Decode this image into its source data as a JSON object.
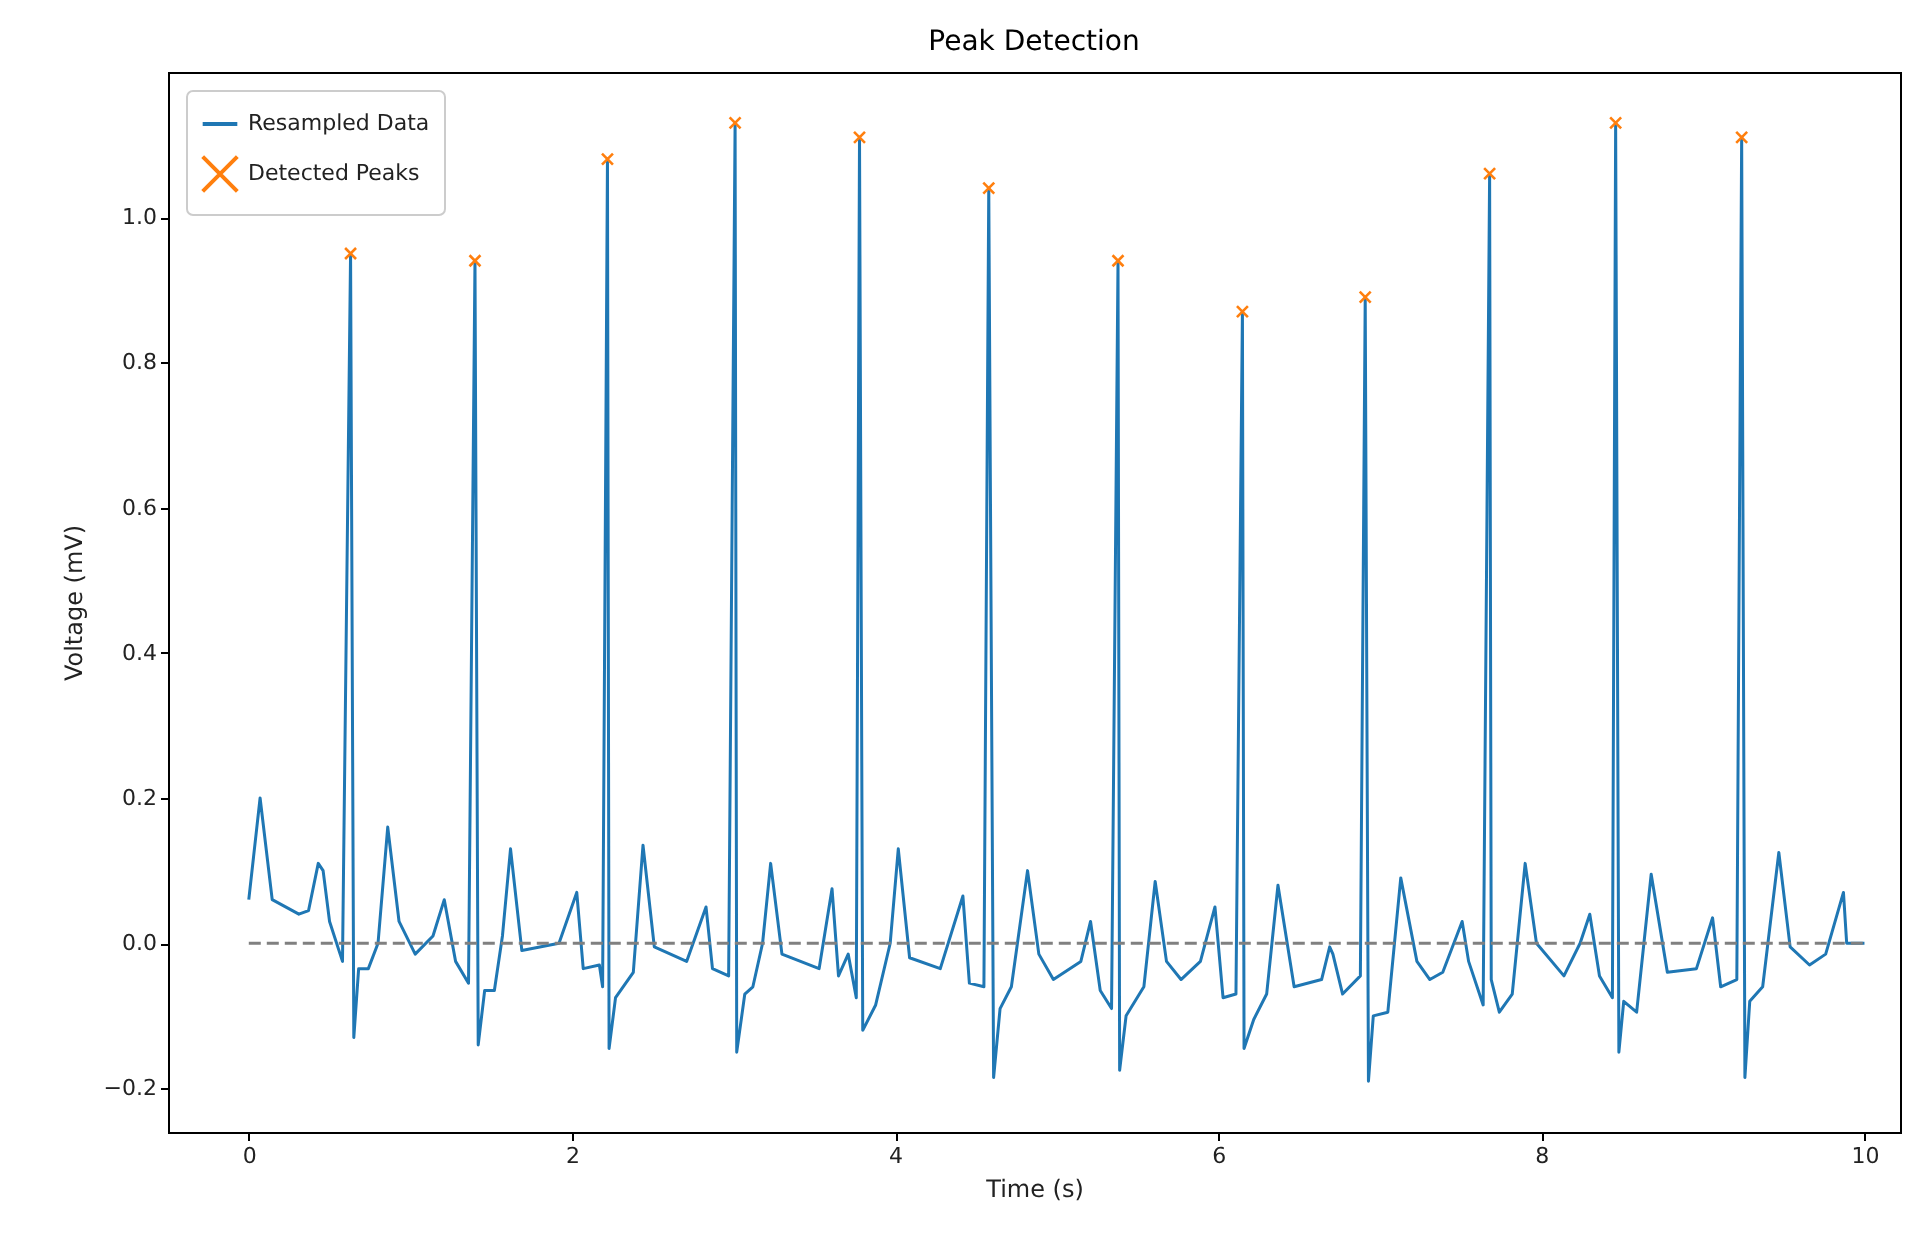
{
  "chart_data": {
    "type": "line",
    "title": "Peak Detection",
    "xlabel": "Time (s)",
    "ylabel": "Voltage (mV)",
    "xlim": [
      -0.5,
      10.22
    ],
    "ylim": [
      -0.26,
      1.2
    ],
    "xticks": [
      0,
      2,
      4,
      6,
      8,
      10
    ],
    "yticks": [
      {
        "value": -0.2,
        "label": "−0.2"
      },
      {
        "value": 0,
        "label": "0.0"
      },
      {
        "value": 0.2,
        "label": "0.2"
      },
      {
        "value": 0.4,
        "label": "0.4"
      },
      {
        "value": 0.6,
        "label": "0.6"
      },
      {
        "value": 0.8,
        "label": "0.8"
      },
      {
        "value": 1.0,
        "label": "1.0"
      }
    ],
    "legend": "top left",
    "grid": false,
    "ref_lines": [
      {
        "axis": "y",
        "value": 0,
        "color": "#808080",
        "line_style": "dashed"
      }
    ],
    "series": [
      {
        "name": "Resampled Data",
        "color": "#1f77b4",
        "marker": "none",
        "line_style": "solid",
        "x": [
          0,
          0.07,
          0.145,
          0.31,
          0.37,
          0.43,
          0.46,
          0.5,
          0.58,
          0.63,
          0.65,
          0.68,
          0.74,
          0.8,
          0.86,
          0.93,
          1.03,
          1.14,
          1.21,
          1.28,
          1.36,
          1.4,
          1.42,
          1.46,
          1.52,
          1.57,
          1.62,
          1.69,
          1.92,
          2.03,
          2.07,
          2.17,
          2.19,
          2.22,
          2.23,
          2.27,
          2.38,
          2.44,
          2.51,
          2.71,
          2.83,
          2.87,
          2.97,
          3.01,
          3.02,
          3.07,
          3.12,
          3.18,
          3.23,
          3.3,
          3.53,
          3.61,
          3.65,
          3.71,
          3.76,
          3.78,
          3.8,
          3.88,
          3.97,
          4.02,
          4.09,
          4.28,
          4.42,
          4.46,
          4.55,
          4.58,
          4.61,
          4.65,
          4.72,
          4.82,
          4.89,
          4.98,
          5.15,
          5.21,
          5.27,
          5.34,
          5.38,
          5.39,
          5.43,
          5.54,
          5.61,
          5.68,
          5.77,
          5.89,
          5.98,
          6.03,
          6.11,
          6.15,
          6.16,
          6.22,
          6.3,
          6.37,
          6.47,
          6.64,
          6.69,
          6.71,
          6.77,
          6.88,
          6.91,
          6.93,
          6.96,
          7.05,
          7.13,
          7.23,
          7.31,
          7.39,
          7.51,
          7.55,
          7.64,
          7.68,
          7.69,
          7.74,
          7.82,
          7.9,
          7.97,
          8.14,
          8.24,
          8.3,
          8.36,
          8.44,
          8.46,
          8.48,
          8.51,
          8.59,
          8.68,
          8.78,
          8.96,
          9.06,
          9.11,
          9.21,
          9.24,
          9.26,
          9.29,
          9.37,
          9.47,
          9.54,
          9.66,
          9.76,
          9.87,
          9.89,
          10.0
        ],
        "values": [
          0.06,
          0.2,
          0.06,
          0.04,
          0.045,
          0.11,
          0.1,
          0.03,
          -0.025,
          0.95,
          -0.13,
          -0.035,
          -0.035,
          0.0,
          0.16,
          0.03,
          -0.015,
          0.01,
          0.06,
          -0.025,
          -0.055,
          0.94,
          -0.14,
          -0.065,
          -0.065,
          0.01,
          0.13,
          -0.01,
          0.0,
          0.07,
          -0.035,
          -0.03,
          -0.06,
          1.08,
          -0.145,
          -0.075,
          -0.04,
          0.135,
          -0.005,
          -0.025,
          0.05,
          -0.035,
          -0.045,
          1.13,
          -0.15,
          -0.07,
          -0.06,
          0.0,
          0.11,
          -0.015,
          -0.035,
          0.075,
          -0.045,
          -0.015,
          -0.075,
          1.11,
          -0.12,
          -0.085,
          0.0,
          0.13,
          -0.02,
          -0.035,
          0.065,
          -0.055,
          -0.06,
          1.04,
          -0.185,
          -0.09,
          -0.06,
          0.1,
          -0.015,
          -0.05,
          -0.025,
          0.03,
          -0.065,
          -0.09,
          0.94,
          -0.175,
          -0.1,
          -0.06,
          0.085,
          -0.025,
          -0.05,
          -0.025,
          0.05,
          -0.075,
          -0.07,
          0.87,
          -0.145,
          -0.105,
          -0.07,
          0.08,
          -0.06,
          -0.05,
          -0.005,
          -0.015,
          -0.07,
          -0.045,
          0.89,
          -0.19,
          -0.1,
          -0.095,
          0.09,
          -0.025,
          -0.05,
          -0.04,
          0.03,
          -0.025,
          -0.085,
          1.06,
          -0.05,
          -0.095,
          -0.07,
          0.11,
          0.0,
          -0.045,
          0.0,
          0.04,
          -0.045,
          -0.075,
          1.13,
          -0.15,
          -0.08,
          -0.095,
          0.095,
          -0.04,
          -0.035,
          0.035,
          -0.06,
          -0.05,
          1.11,
          -0.185,
          -0.08,
          -0.06,
          0.125,
          -0.005,
          -0.03,
          -0.015,
          0.07,
          0.0,
          0.0
        ]
      },
      {
        "name": "Detected Peaks",
        "type": "scatter",
        "color": "#ff7f0e",
        "marker": "cross",
        "x": [
          0.63,
          1.4,
          2.22,
          3.01,
          3.78,
          4.58,
          5.38,
          6.15,
          6.91,
          7.68,
          8.46,
          9.24
        ],
        "values": [
          0.95,
          0.94,
          1.08,
          1.13,
          1.11,
          1.04,
          0.94,
          0.87,
          0.89,
          1.06,
          1.13,
          1.11
        ]
      }
    ]
  }
}
